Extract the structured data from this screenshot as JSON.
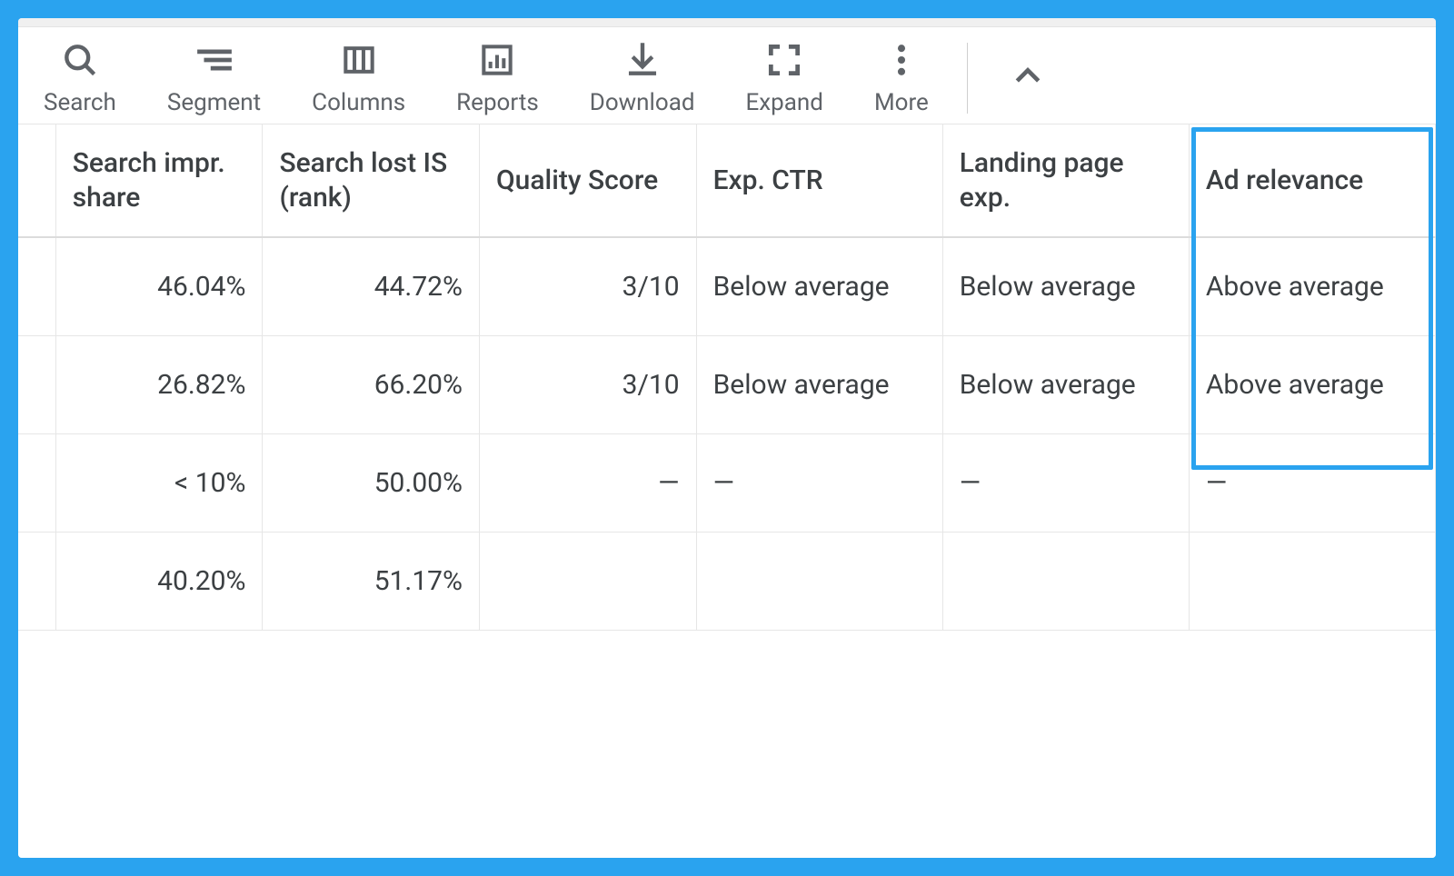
{
  "colors": {
    "page_bg": "#2aa3ef",
    "panel_bg": "#ffffff",
    "border": "#e6e6e6",
    "icon": "#5f6368",
    "text": "#3c4043",
    "highlight": "#2aa3ef"
  },
  "toolbar": {
    "search": {
      "label": "Search"
    },
    "segment": {
      "label": "Segment"
    },
    "columns": {
      "label": "Columns"
    },
    "reports": {
      "label": "Reports"
    },
    "download": {
      "label": "Download"
    },
    "expand": {
      "label": "Expand"
    },
    "more": {
      "label": "More"
    }
  },
  "table": {
    "type": "table",
    "columns": [
      {
        "key": "impr_share",
        "label": "Search impr. share",
        "align": "right"
      },
      {
        "key": "lost_is_rank",
        "label": "Search lost IS (rank)",
        "align": "right"
      },
      {
        "key": "quality",
        "label": "Quality Score",
        "align": "right"
      },
      {
        "key": "exp_ctr",
        "label": "Exp. CTR",
        "align": "left"
      },
      {
        "key": "lp_exp",
        "label": "Landing page exp.",
        "align": "left"
      },
      {
        "key": "ad_rel",
        "label": "Ad relevance",
        "align": "left"
      }
    ],
    "rows": [
      {
        "impr_share": "46.04%",
        "lost_is_rank": "44.72%",
        "quality": "3/10",
        "exp_ctr": "Below average",
        "lp_exp": "Below average",
        "ad_rel": "Above average"
      },
      {
        "impr_share": "26.82%",
        "lost_is_rank": "66.20%",
        "quality": "3/10",
        "exp_ctr": "Below average",
        "lp_exp": "Below average",
        "ad_rel": "Above average"
      },
      {
        "impr_share": "< 10%",
        "lost_is_rank": "50.00%",
        "quality": "—",
        "exp_ctr": "—",
        "lp_exp": "—",
        "ad_rel": "—"
      },
      {
        "impr_share": "40.20%",
        "lost_is_rank": "51.17%",
        "quality": "",
        "exp_ctr": "",
        "lp_exp": "",
        "ad_rel": ""
      }
    ],
    "highlight_column": "ad_rel",
    "highlight_rows": [
      0,
      1
    ]
  }
}
